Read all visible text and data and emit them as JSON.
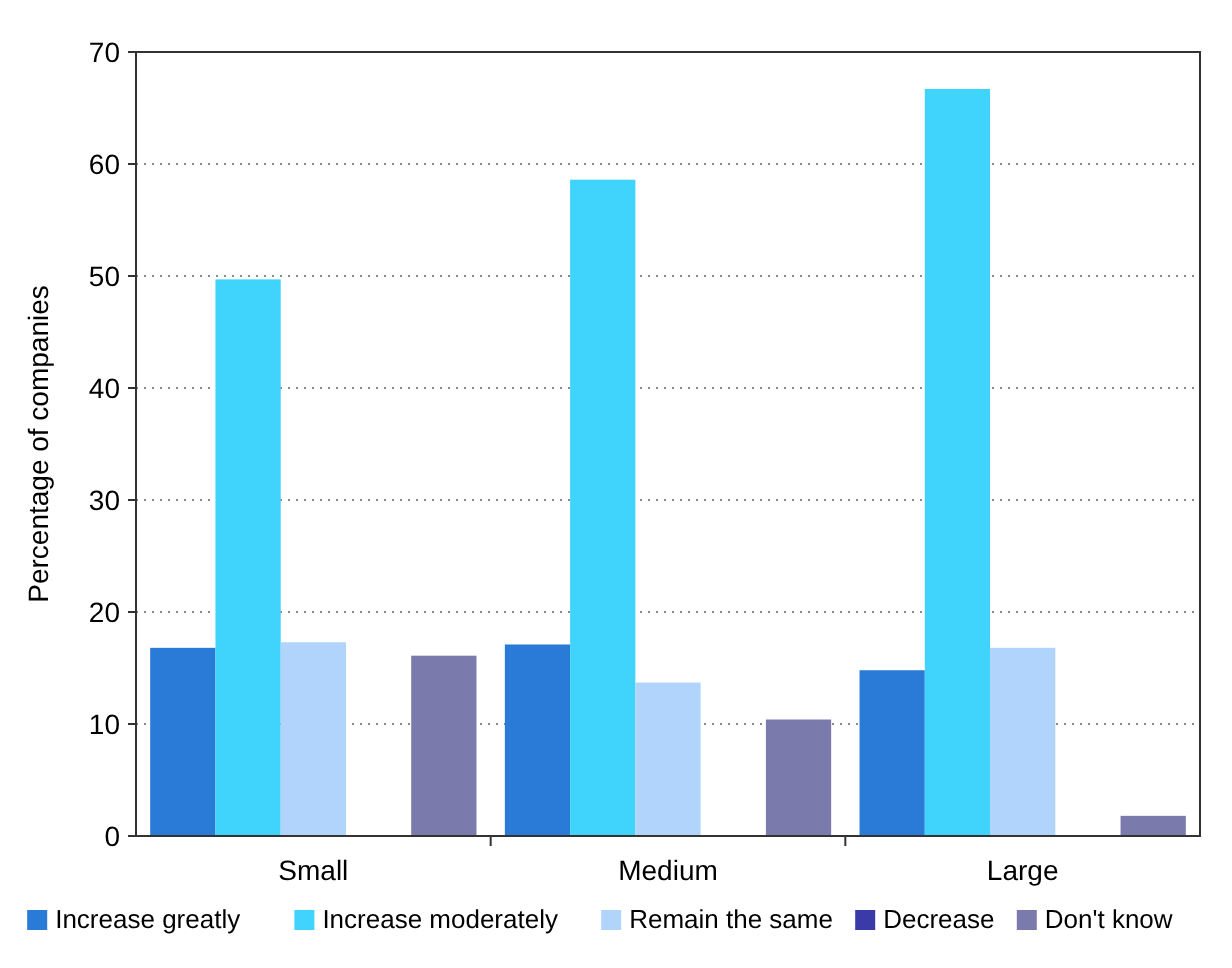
{
  "chart_data": {
    "type": "bar",
    "ylabel": "Percentage of companies",
    "categories": [
      "Small",
      "Medium",
      "Large"
    ],
    "series": [
      {
        "name": "Increase greatly",
        "color": "#2a7ad8",
        "values": [
          16.8,
          17.1,
          14.8
        ]
      },
      {
        "name": "Increase moderately",
        "color": "#40d4fc",
        "values": [
          49.7,
          58.6,
          66.7
        ]
      },
      {
        "name": "Remain the same",
        "color": "#b0d4fc",
        "values": [
          17.3,
          13.7,
          16.8
        ]
      },
      {
        "name": "Decrease",
        "color": "#3a3aa8",
        "values": [
          0,
          0,
          0
        ]
      },
      {
        "name": "Don't know",
        "color": "#7a7aac",
        "values": [
          16.1,
          10.4,
          1.8
        ]
      }
    ],
    "ylim": [
      0,
      70
    ],
    "yticks": [
      0,
      10,
      20,
      30,
      40,
      50,
      60,
      70
    ],
    "grid": "y",
    "legend": "bottom"
  }
}
